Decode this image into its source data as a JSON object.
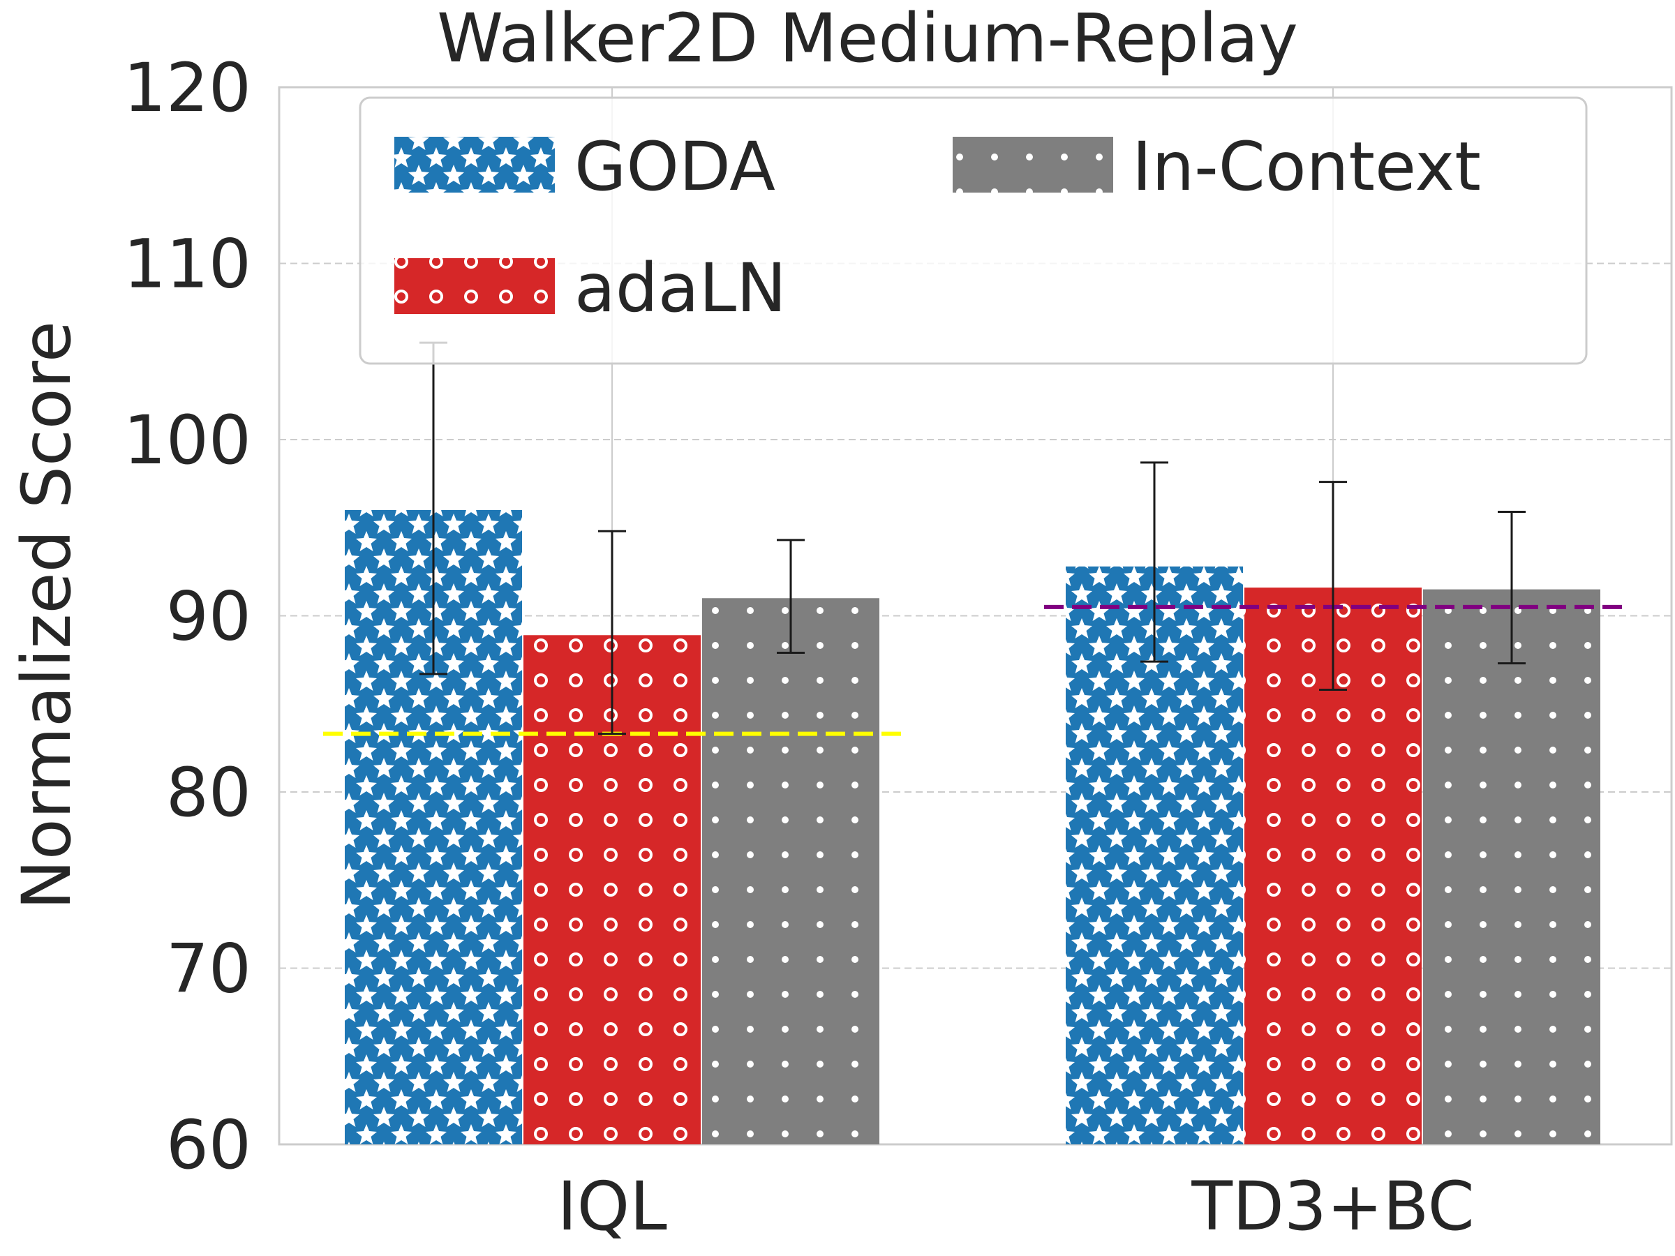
{
  "chart_data": {
    "type": "bar",
    "title": "Walker2D Medium-Replay",
    "xlabel": "",
    "ylabel": "Normalized Score",
    "categories": [
      "IQL",
      "TD3+BC"
    ],
    "ylim": [
      60,
      120
    ],
    "yticks": [
      60,
      70,
      80,
      90,
      100,
      110,
      120
    ],
    "grid": true,
    "legend_position": "top",
    "series": [
      {
        "name": "GODA",
        "color": "#1f77b4",
        "pattern": "stars",
        "values": [
          96.0,
          92.8
        ],
        "err_low": [
          86.7,
          87.4
        ],
        "err_high": [
          105.5,
          98.7
        ]
      },
      {
        "name": "adaLN",
        "color": "#d62728",
        "pattern": "rings",
        "values": [
          88.9,
          91.6
        ],
        "err_low": [
          83.3,
          85.8
        ],
        "err_high": [
          94.8,
          97.6
        ]
      },
      {
        "name": "In-Context",
        "color": "#7f7f7f",
        "pattern": "dots",
        "values": [
          91.0,
          91.5
        ],
        "err_low": [
          87.9,
          87.3
        ],
        "err_high": [
          94.3,
          95.9
        ]
      }
    ],
    "reference_lines": [
      {
        "category": "IQL",
        "value": 83.3,
        "color": "#ffff00",
        "style": "dashed"
      },
      {
        "category": "TD3+BC",
        "value": 90.5,
        "color": "#800080",
        "style": "dashed"
      }
    ]
  }
}
